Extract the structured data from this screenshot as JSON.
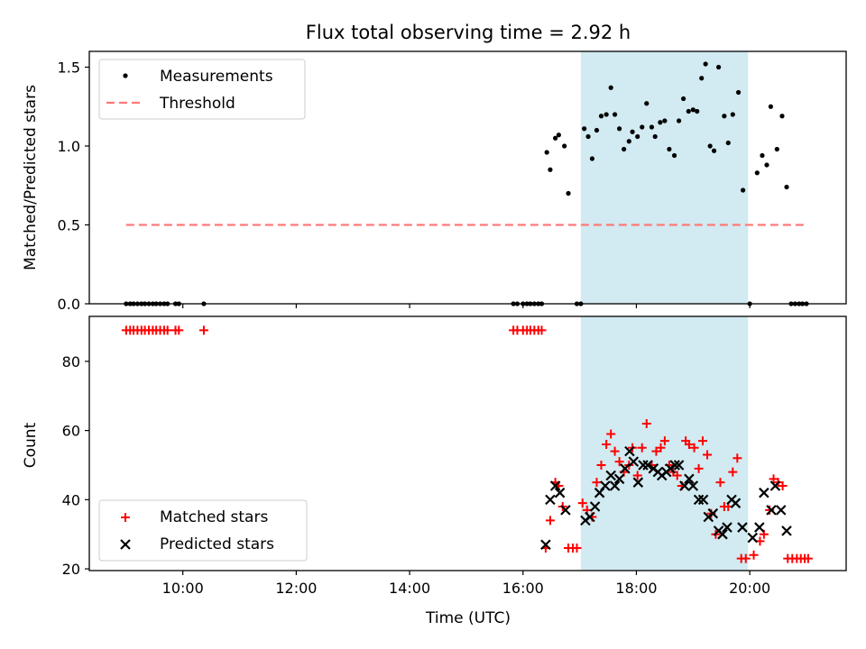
{
  "chart_data": {
    "title": "Flux total observing time = 2.92 h",
    "xlabel": "Time (UTC)",
    "x_ticks": [
      "10:00",
      "12:00",
      "14:00",
      "16:00",
      "18:00",
      "20:00"
    ],
    "x_tick_hours": [
      10,
      12,
      14,
      16,
      18,
      20
    ],
    "xlim_hours": [
      8.35,
      21.7
    ],
    "highlight_span_hours": [
      17.02,
      19.97
    ],
    "colors": {
      "measurements": "#000000",
      "threshold": "#ff7a7a",
      "matched": "#ff0000",
      "predicted": "#000000",
      "span": "#add8e6"
    },
    "ratio": {
      "type": "scatter",
      "ylabel": "Matched/Predicted stars",
      "ylim": [
        0,
        1.6
      ],
      "y_ticks": [
        "0.0",
        "0.5",
        "1.0",
        "1.5"
      ],
      "y_tick_values": [
        0,
        0.5,
        1.0,
        1.5
      ],
      "legend_position": "top-left",
      "legend": {
        "measurements": "Measurements",
        "threshold": "Threshold"
      },
      "threshold": {
        "value": 0.5,
        "x_range": [
          9.0,
          21.03
        ]
      },
      "measurements": [
        [
          9.0,
          0
        ],
        [
          9.07,
          0
        ],
        [
          9.13,
          0
        ],
        [
          9.2,
          0
        ],
        [
          9.27,
          0
        ],
        [
          9.33,
          0
        ],
        [
          9.4,
          0
        ],
        [
          9.47,
          0
        ],
        [
          9.53,
          0
        ],
        [
          9.6,
          0
        ],
        [
          9.67,
          0
        ],
        [
          9.73,
          0
        ],
        [
          9.87,
          0
        ],
        [
          9.93,
          0
        ],
        [
          10.37,
          0
        ],
        [
          15.83,
          0
        ],
        [
          15.9,
          0
        ],
        [
          16.0,
          0
        ],
        [
          16.07,
          0
        ],
        [
          16.13,
          0
        ],
        [
          16.2,
          0
        ],
        [
          16.27,
          0
        ],
        [
          16.33,
          0
        ],
        [
          16.42,
          0.96
        ],
        [
          16.48,
          0.85
        ],
        [
          16.57,
          1.05
        ],
        [
          16.63,
          1.07
        ],
        [
          16.73,
          1.0
        ],
        [
          16.8,
          0.7
        ],
        [
          16.95,
          0
        ],
        [
          17.02,
          0
        ],
        [
          17.08,
          1.11
        ],
        [
          17.15,
          1.06
        ],
        [
          17.22,
          0.92
        ],
        [
          17.3,
          1.1
        ],
        [
          17.38,
          1.19
        ],
        [
          17.47,
          1.2
        ],
        [
          17.55,
          1.37
        ],
        [
          17.62,
          1.2
        ],
        [
          17.7,
          1.11
        ],
        [
          17.78,
          0.98
        ],
        [
          17.87,
          1.03
        ],
        [
          17.93,
          1.09
        ],
        [
          18.02,
          1.06
        ],
        [
          18.1,
          1.12
        ],
        [
          18.18,
          1.27
        ],
        [
          18.27,
          1.12
        ],
        [
          18.33,
          1.06
        ],
        [
          18.42,
          1.15
        ],
        [
          18.5,
          1.16
        ],
        [
          18.58,
          0.98
        ],
        [
          18.67,
          0.94
        ],
        [
          18.75,
          1.16
        ],
        [
          18.83,
          1.3
        ],
        [
          18.92,
          1.22
        ],
        [
          19.0,
          1.23
        ],
        [
          19.07,
          1.22
        ],
        [
          19.15,
          1.43
        ],
        [
          19.22,
          1.52
        ],
        [
          19.3,
          1.0
        ],
        [
          19.37,
          0.97
        ],
        [
          19.45,
          1.5
        ],
        [
          19.55,
          1.19
        ],
        [
          19.62,
          1.02
        ],
        [
          19.7,
          1.2
        ],
        [
          19.8,
          1.34
        ],
        [
          19.88,
          0.72
        ],
        [
          20.0,
          0
        ],
        [
          20.13,
          0.83
        ],
        [
          20.22,
          0.94
        ],
        [
          20.3,
          0.88
        ],
        [
          20.37,
          1.25
        ],
        [
          20.48,
          0.98
        ],
        [
          20.57,
          1.19
        ],
        [
          20.65,
          0.74
        ],
        [
          20.73,
          0
        ],
        [
          20.8,
          0
        ],
        [
          20.87,
          0
        ],
        [
          20.93,
          0
        ],
        [
          21.0,
          0
        ]
      ]
    },
    "counts": {
      "type": "scatter",
      "ylabel": "Count",
      "ylim": [
        19.5,
        93
      ],
      "y_ticks": [
        "20",
        "40",
        "60",
        "80"
      ],
      "y_tick_values": [
        20,
        40,
        60,
        80
      ],
      "legend_position": "bottom-left",
      "legend": {
        "matched": "Matched stars",
        "predicted": "Predicted stars"
      },
      "matched": [
        [
          9.0,
          89
        ],
        [
          9.07,
          89
        ],
        [
          9.13,
          89
        ],
        [
          9.2,
          89
        ],
        [
          9.27,
          89
        ],
        [
          9.33,
          89
        ],
        [
          9.4,
          89
        ],
        [
          9.47,
          89
        ],
        [
          9.53,
          89
        ],
        [
          9.6,
          89
        ],
        [
          9.67,
          89
        ],
        [
          9.73,
          89
        ],
        [
          9.87,
          89
        ],
        [
          9.93,
          89
        ],
        [
          10.37,
          89
        ],
        [
          15.83,
          89
        ],
        [
          15.9,
          89
        ],
        [
          16.0,
          89
        ],
        [
          16.07,
          89
        ],
        [
          16.13,
          89
        ],
        [
          16.2,
          89
        ],
        [
          16.27,
          89
        ],
        [
          16.33,
          89
        ],
        [
          16.4,
          26
        ],
        [
          16.48,
          34
        ],
        [
          16.57,
          45
        ],
        [
          16.63,
          44
        ],
        [
          16.7,
          38
        ],
        [
          16.8,
          26
        ],
        [
          16.88,
          26
        ],
        [
          16.95,
          26
        ],
        [
          17.05,
          39
        ],
        [
          17.13,
          37
        ],
        [
          17.22,
          35
        ],
        [
          17.3,
          45
        ],
        [
          17.38,
          50
        ],
        [
          17.47,
          56
        ],
        [
          17.55,
          59
        ],
        [
          17.62,
          54
        ],
        [
          17.7,
          51
        ],
        [
          17.78,
          48
        ],
        [
          17.87,
          50
        ],
        [
          17.93,
          55
        ],
        [
          18.02,
          47
        ],
        [
          18.1,
          55
        ],
        [
          18.18,
          62
        ],
        [
          18.27,
          50
        ],
        [
          18.35,
          54
        ],
        [
          18.43,
          55
        ],
        [
          18.5,
          57
        ],
        [
          18.58,
          50
        ],
        [
          18.65,
          48
        ],
        [
          18.72,
          47
        ],
        [
          18.8,
          44
        ],
        [
          18.87,
          57
        ],
        [
          18.93,
          56
        ],
        [
          19.02,
          55
        ],
        [
          19.1,
          49
        ],
        [
          19.17,
          57
        ],
        [
          19.25,
          53
        ],
        [
          19.32,
          36
        ],
        [
          19.4,
          30
        ],
        [
          19.48,
          45
        ],
        [
          19.55,
          38
        ],
        [
          19.62,
          38
        ],
        [
          19.7,
          48
        ],
        [
          19.78,
          52
        ],
        [
          19.85,
          23
        ],
        [
          19.93,
          23
        ],
        [
          20.07,
          24
        ],
        [
          20.18,
          28
        ],
        [
          20.25,
          30
        ],
        [
          20.35,
          37
        ],
        [
          20.42,
          46
        ],
        [
          20.5,
          45
        ],
        [
          20.58,
          44
        ],
        [
          20.67,
          23
        ],
        [
          20.75,
          23
        ],
        [
          20.83,
          23
        ],
        [
          20.9,
          23
        ],
        [
          20.97,
          23
        ],
        [
          21.03,
          23
        ]
      ],
      "predicted": [
        [
          16.4,
          27
        ],
        [
          16.48,
          40
        ],
        [
          16.57,
          44
        ],
        [
          16.65,
          42
        ],
        [
          16.75,
          37
        ],
        [
          17.1,
          34
        ],
        [
          17.18,
          35
        ],
        [
          17.27,
          38
        ],
        [
          17.35,
          42
        ],
        [
          17.45,
          44
        ],
        [
          17.55,
          47
        ],
        [
          17.62,
          44
        ],
        [
          17.7,
          46
        ],
        [
          17.8,
          49
        ],
        [
          17.88,
          54
        ],
        [
          17.95,
          51
        ],
        [
          18.03,
          45
        ],
        [
          18.12,
          50
        ],
        [
          18.2,
          50
        ],
        [
          18.3,
          49
        ],
        [
          18.38,
          48
        ],
        [
          18.45,
          47
        ],
        [
          18.53,
          48
        ],
        [
          18.6,
          49
        ],
        [
          18.68,
          50
        ],
        [
          18.75,
          50
        ],
        [
          18.85,
          44
        ],
        [
          18.93,
          46
        ],
        [
          19.0,
          44
        ],
        [
          19.1,
          40
        ],
        [
          19.18,
          40
        ],
        [
          19.27,
          35
        ],
        [
          19.35,
          36
        ],
        [
          19.45,
          31
        ],
        [
          19.52,
          30
        ],
        [
          19.6,
          32
        ],
        [
          19.68,
          40
        ],
        [
          19.75,
          39
        ],
        [
          19.87,
          32
        ],
        [
          20.05,
          29
        ],
        [
          20.17,
          32
        ],
        [
          20.25,
          42
        ],
        [
          20.38,
          37
        ],
        [
          20.45,
          44
        ],
        [
          20.55,
          37
        ],
        [
          20.65,
          31
        ]
      ]
    }
  }
}
